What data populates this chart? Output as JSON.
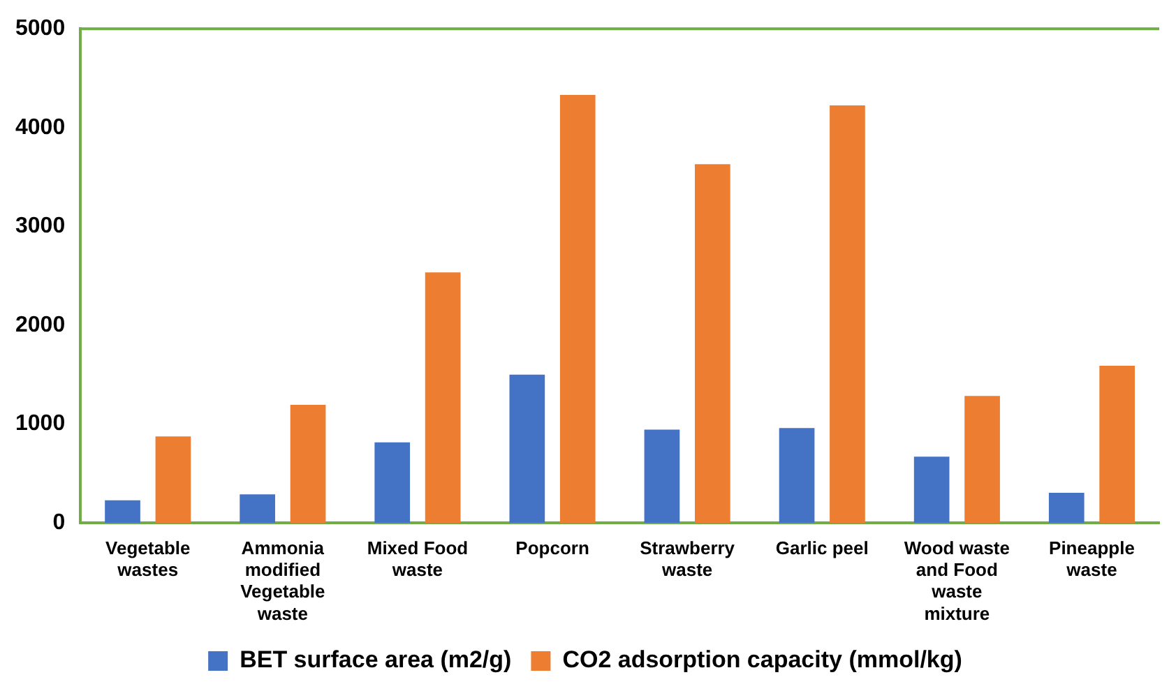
{
  "chart_data": {
    "type": "bar",
    "categories": [
      "Vegetable wastes",
      "Ammonia modified Vegetable waste",
      "Mixed Food waste",
      "Popcorn",
      "Strawberry waste",
      "Garlic peel",
      "Wood waste and Food waste mixture",
      "Pineapple waste"
    ],
    "series": [
      {
        "name": "BET surface area (m2/g)",
        "color": "#4472c4",
        "values": [
          230,
          290,
          815,
          1500,
          945,
          960,
          670,
          305
        ]
      },
      {
        "name": "CO2 adsorption capacity (mmol/kg)",
        "color": "#ed7d31",
        "values": [
          875,
          1195,
          2535,
          4330,
          3630,
          4225,
          1285,
          1590
        ]
      }
    ],
    "ylim": [
      0,
      5000
    ],
    "yticks": [
      0,
      1000,
      2000,
      3000,
      4000,
      5000
    ],
    "grid": false,
    "legend": "bottom"
  }
}
